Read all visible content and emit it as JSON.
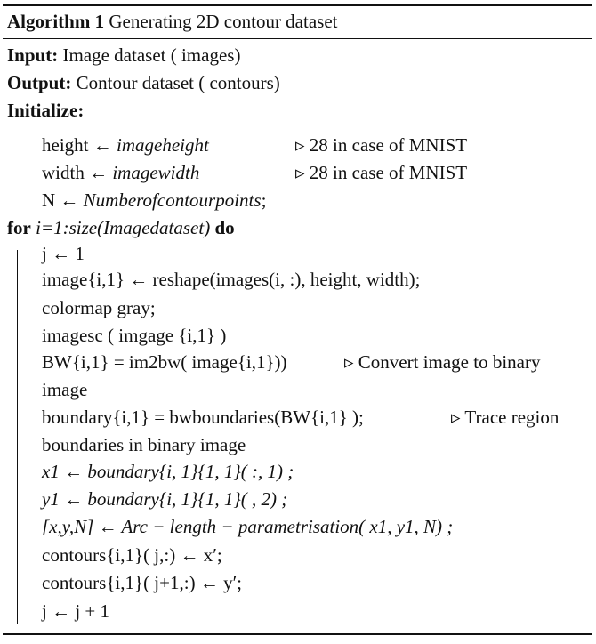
{
  "algorithm": {
    "label": "Algorithm 1",
    "title": "Generating 2D contour dataset",
    "input_label": "Input:",
    "input_text": "Image dataset ( images)",
    "output_label": "Output:",
    "output_text": "Contour dataset ( contours)",
    "init_label": "Initialize:",
    "init": [
      {
        "left": "height ← ",
        "right": "imageheight",
        "comment": "▹ 28 in case of MNIST"
      },
      {
        "left": "width ← ",
        "right": "imagewidth",
        "comment": "▹ 28 in case of MNIST"
      },
      {
        "left": "N ← ",
        "right": "Numberofcontourpoints",
        "tail": ";"
      }
    ],
    "loop": {
      "for_kw": "for",
      "condition": "i=1:size(Imagedataset)",
      "do_kw": "do"
    },
    "body": [
      "j ← 1",
      "image{i,1} ← reshape(images(i, :), height, width);",
      "colormap gray;",
      "imagesc ( imgage {i,1} )",
      "BW{i,1} = im2bw( image{i,1}))",
      "image",
      "boundary{i,1} = bwboundaries(BW{i,1} );",
      "boundaries in binary image",
      "x1 ← boundary{i, 1}{1, 1}( :, 1) ;",
      "y1 ← boundary{i, 1}{1, 1}( , 2) ;",
      "[x,y,N] ← Arc − length − parametrisation( x1, y1, N) ;",
      "contours{i,1}( j,:) ← x′;",
      "contours{i,1}( j+1,:) ← y′;",
      "j ← j + 1"
    ],
    "body_comments": {
      "bw": "▹ Convert image to binary",
      "boundary": "▹ Trace region"
    }
  }
}
